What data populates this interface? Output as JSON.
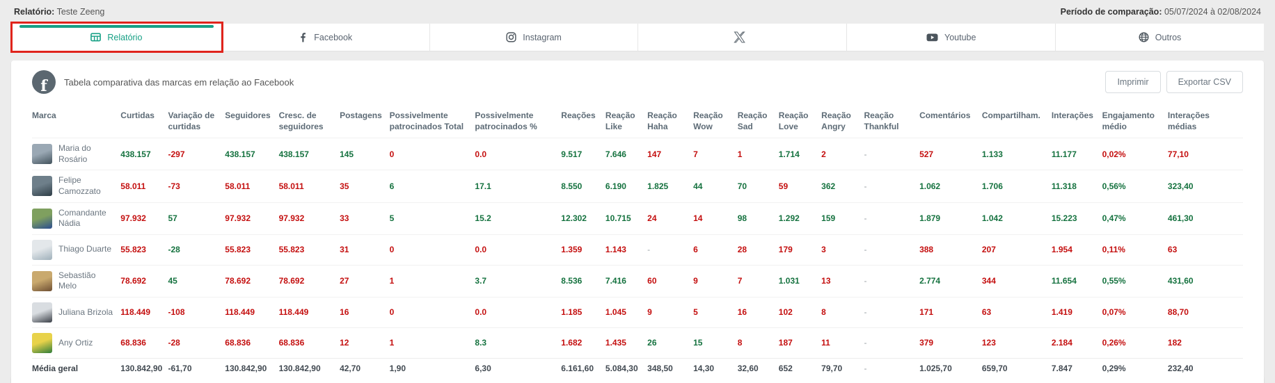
{
  "page": {
    "report_label": "Relatório:",
    "report_name": "Teste Zeeng",
    "period_label": "Período de comparação:",
    "period_value": "05/07/2024 à 02/08/2024"
  },
  "tabs": [
    {
      "label": "Relatório",
      "icon": "table-icon",
      "active": true
    },
    {
      "label": "Facebook",
      "icon": "facebook-icon",
      "active": false
    },
    {
      "label": "Instagram",
      "icon": "instagram-icon",
      "active": false
    },
    {
      "label": "",
      "icon": "x-icon",
      "active": false
    },
    {
      "label": "Youtube",
      "icon": "youtube-icon",
      "active": false
    },
    {
      "label": "Outros",
      "icon": "globe-icon",
      "active": false
    }
  ],
  "card": {
    "icon": "facebook-circle-icon",
    "title": "Tabela comparativa das marcas em relação ao Facebook",
    "buttons": {
      "print": "Imprimir",
      "export": "Exportar CSV"
    }
  },
  "colors": {
    "accent_teal": "#16a085",
    "highlight_red": "#e0241c",
    "positive": "#15723f",
    "negative": "#c40f0f"
  },
  "table": {
    "columns": [
      "Marca",
      "Curtidas",
      "Variação de curtidas",
      "Seguidores",
      "Cresc. de seguidores",
      "Postagens",
      "Possivelmente patrocinados Total",
      "Possivelmente patrocinados %",
      "Reações",
      "Reação Like",
      "Reação Haha",
      "Reação Wow",
      "Reação Sad",
      "Reação Love",
      "Reação Angry",
      "Reação Thankful",
      "Comentários",
      "Compartilham.",
      "Interações",
      "Engajamento médio",
      "Interações médias"
    ],
    "rows": [
      {
        "brand": "Maria do Rosário",
        "avatar": [
          "#9aa8b4",
          "#42525c"
        ],
        "values": [
          {
            "v": "438.157",
            "c": "g"
          },
          {
            "v": "-297",
            "c": "r"
          },
          {
            "v": "438.157",
            "c": "g"
          },
          {
            "v": "438.157",
            "c": "g"
          },
          {
            "v": "145",
            "c": "g"
          },
          {
            "v": "0",
            "c": "r"
          },
          {
            "v": "0.0",
            "c": "r"
          },
          {
            "v": "9.517",
            "c": "g"
          },
          {
            "v": "7.646",
            "c": "g"
          },
          {
            "v": "147",
            "c": "r"
          },
          {
            "v": "7",
            "c": "r"
          },
          {
            "v": "1",
            "c": "r"
          },
          {
            "v": "1.714",
            "c": "g"
          },
          {
            "v": "2",
            "c": "r"
          },
          {
            "v": "-",
            "c": "d"
          },
          {
            "v": "527",
            "c": "r"
          },
          {
            "v": "1.133",
            "c": "g"
          },
          {
            "v": "11.177",
            "c": "g"
          },
          {
            "v": "0,02%",
            "c": "r"
          },
          {
            "v": "77,10",
            "c": "r"
          }
        ]
      },
      {
        "brand": "Felipe Camozzato",
        "avatar": [
          "#6e7f8a",
          "#2e3d46"
        ],
        "values": [
          {
            "v": "58.011",
            "c": "r"
          },
          {
            "v": "-73",
            "c": "r"
          },
          {
            "v": "58.011",
            "c": "r"
          },
          {
            "v": "58.011",
            "c": "r"
          },
          {
            "v": "35",
            "c": "r"
          },
          {
            "v": "6",
            "c": "g"
          },
          {
            "v": "17.1",
            "c": "g"
          },
          {
            "v": "8.550",
            "c": "g"
          },
          {
            "v": "6.190",
            "c": "g"
          },
          {
            "v": "1.825",
            "c": "g"
          },
          {
            "v": "44",
            "c": "g"
          },
          {
            "v": "70",
            "c": "g"
          },
          {
            "v": "59",
            "c": "r"
          },
          {
            "v": "362",
            "c": "g"
          },
          {
            "v": "-",
            "c": "d"
          },
          {
            "v": "1.062",
            "c": "g"
          },
          {
            "v": "1.706",
            "c": "g"
          },
          {
            "v": "11.318",
            "c": "g"
          },
          {
            "v": "0,56%",
            "c": "g"
          },
          {
            "v": "323,40",
            "c": "g"
          }
        ]
      },
      {
        "brand": "Comandante Nádia",
        "avatar": [
          "#7fa05f",
          "#2b4d8f"
        ],
        "values": [
          {
            "v": "97.932",
            "c": "r"
          },
          {
            "v": "57",
            "c": "g"
          },
          {
            "v": "97.932",
            "c": "r"
          },
          {
            "v": "97.932",
            "c": "r"
          },
          {
            "v": "33",
            "c": "r"
          },
          {
            "v": "5",
            "c": "g"
          },
          {
            "v": "15.2",
            "c": "g"
          },
          {
            "v": "12.302",
            "c": "g"
          },
          {
            "v": "10.715",
            "c": "g"
          },
          {
            "v": "24",
            "c": "r"
          },
          {
            "v": "14",
            "c": "r"
          },
          {
            "v": "98",
            "c": "g"
          },
          {
            "v": "1.292",
            "c": "g"
          },
          {
            "v": "159",
            "c": "g"
          },
          {
            "v": "-",
            "c": "d"
          },
          {
            "v": "1.879",
            "c": "g"
          },
          {
            "v": "1.042",
            "c": "g"
          },
          {
            "v": "15.223",
            "c": "g"
          },
          {
            "v": "0,47%",
            "c": "g"
          },
          {
            "v": "461,30",
            "c": "g"
          }
        ]
      },
      {
        "brand": "Thiago Duarte",
        "avatar": [
          "#e3e7ea",
          "#9fb0ba"
        ],
        "values": [
          {
            "v": "55.823",
            "c": "r"
          },
          {
            "v": "-28",
            "c": "g"
          },
          {
            "v": "55.823",
            "c": "r"
          },
          {
            "v": "55.823",
            "c": "r"
          },
          {
            "v": "31",
            "c": "r"
          },
          {
            "v": "0",
            "c": "r"
          },
          {
            "v": "0.0",
            "c": "r"
          },
          {
            "v": "1.359",
            "c": "r"
          },
          {
            "v": "1.143",
            "c": "r"
          },
          {
            "v": "-",
            "c": "d"
          },
          {
            "v": "6",
            "c": "r"
          },
          {
            "v": "28",
            "c": "r"
          },
          {
            "v": "179",
            "c": "r"
          },
          {
            "v": "3",
            "c": "r"
          },
          {
            "v": "-",
            "c": "d"
          },
          {
            "v": "388",
            "c": "r"
          },
          {
            "v": "207",
            "c": "r"
          },
          {
            "v": "1.954",
            "c": "r"
          },
          {
            "v": "0,11%",
            "c": "r"
          },
          {
            "v": "63",
            "c": "r"
          }
        ]
      },
      {
        "brand": "Sebastião Melo",
        "avatar": [
          "#c9a96e",
          "#6e4f33"
        ],
        "values": [
          {
            "v": "78.692",
            "c": "r"
          },
          {
            "v": "45",
            "c": "g"
          },
          {
            "v": "78.692",
            "c": "r"
          },
          {
            "v": "78.692",
            "c": "r"
          },
          {
            "v": "27",
            "c": "r"
          },
          {
            "v": "1",
            "c": "r"
          },
          {
            "v": "3.7",
            "c": "g"
          },
          {
            "v": "8.536",
            "c": "g"
          },
          {
            "v": "7.416",
            "c": "g"
          },
          {
            "v": "60",
            "c": "r"
          },
          {
            "v": "9",
            "c": "r"
          },
          {
            "v": "7",
            "c": "r"
          },
          {
            "v": "1.031",
            "c": "g"
          },
          {
            "v": "13",
            "c": "r"
          },
          {
            "v": "-",
            "c": "d"
          },
          {
            "v": "2.774",
            "c": "g"
          },
          {
            "v": "344",
            "c": "r"
          },
          {
            "v": "11.654",
            "c": "g"
          },
          {
            "v": "0,55%",
            "c": "g"
          },
          {
            "v": "431,60",
            "c": "g"
          }
        ]
      },
      {
        "brand": "Juliana Brizola",
        "avatar": [
          "#d9dde1",
          "#3a3f47"
        ],
        "values": [
          {
            "v": "118.449",
            "c": "r"
          },
          {
            "v": "-108",
            "c": "r"
          },
          {
            "v": "118.449",
            "c": "r"
          },
          {
            "v": "118.449",
            "c": "r"
          },
          {
            "v": "16",
            "c": "r"
          },
          {
            "v": "0",
            "c": "r"
          },
          {
            "v": "0.0",
            "c": "r"
          },
          {
            "v": "1.185",
            "c": "r"
          },
          {
            "v": "1.045",
            "c": "r"
          },
          {
            "v": "9",
            "c": "r"
          },
          {
            "v": "5",
            "c": "r"
          },
          {
            "v": "16",
            "c": "r"
          },
          {
            "v": "102",
            "c": "r"
          },
          {
            "v": "8",
            "c": "r"
          },
          {
            "v": "-",
            "c": "d"
          },
          {
            "v": "171",
            "c": "r"
          },
          {
            "v": "63",
            "c": "r"
          },
          {
            "v": "1.419",
            "c": "r"
          },
          {
            "v": "0,07%",
            "c": "r"
          },
          {
            "v": "88,70",
            "c": "r"
          }
        ]
      },
      {
        "brand": "Any Ortiz",
        "avatar": [
          "#e8d24a",
          "#2f7d3a"
        ],
        "values": [
          {
            "v": "68.836",
            "c": "r"
          },
          {
            "v": "-28",
            "c": "r"
          },
          {
            "v": "68.836",
            "c": "r"
          },
          {
            "v": "68.836",
            "c": "r"
          },
          {
            "v": "12",
            "c": "r"
          },
          {
            "v": "1",
            "c": "r"
          },
          {
            "v": "8.3",
            "c": "g"
          },
          {
            "v": "1.682",
            "c": "r"
          },
          {
            "v": "1.435",
            "c": "r"
          },
          {
            "v": "26",
            "c": "g"
          },
          {
            "v": "15",
            "c": "g"
          },
          {
            "v": "8",
            "c": "r"
          },
          {
            "v": "187",
            "c": "r"
          },
          {
            "v": "11",
            "c": "r"
          },
          {
            "v": "-",
            "c": "d"
          },
          {
            "v": "379",
            "c": "r"
          },
          {
            "v": "123",
            "c": "r"
          },
          {
            "v": "2.184",
            "c": "r"
          },
          {
            "v": "0,26%",
            "c": "r"
          },
          {
            "v": "182",
            "c": "r"
          }
        ]
      }
    ],
    "footer": {
      "brand": "Média geral",
      "values": [
        {
          "v": "130.842,90",
          "c": "n"
        },
        {
          "v": "-61,70",
          "c": "n"
        },
        {
          "v": "130.842,90",
          "c": "n"
        },
        {
          "v": "130.842,90",
          "c": "n"
        },
        {
          "v": "42,70",
          "c": "n"
        },
        {
          "v": "1,90",
          "c": "n"
        },
        {
          "v": "6,30",
          "c": "n"
        },
        {
          "v": "6.161,60",
          "c": "n"
        },
        {
          "v": "5.084,30",
          "c": "n"
        },
        {
          "v": "348,50",
          "c": "n"
        },
        {
          "v": "14,30",
          "c": "n"
        },
        {
          "v": "32,60",
          "c": "n"
        },
        {
          "v": "652",
          "c": "n"
        },
        {
          "v": "79,70",
          "c": "n"
        },
        {
          "v": "-",
          "c": "d"
        },
        {
          "v": "1.025,70",
          "c": "n"
        },
        {
          "v": "659,70",
          "c": "n"
        },
        {
          "v": "7.847",
          "c": "n"
        },
        {
          "v": "0,29%",
          "c": "n"
        },
        {
          "v": "232,40",
          "c": "n"
        }
      ]
    }
  }
}
